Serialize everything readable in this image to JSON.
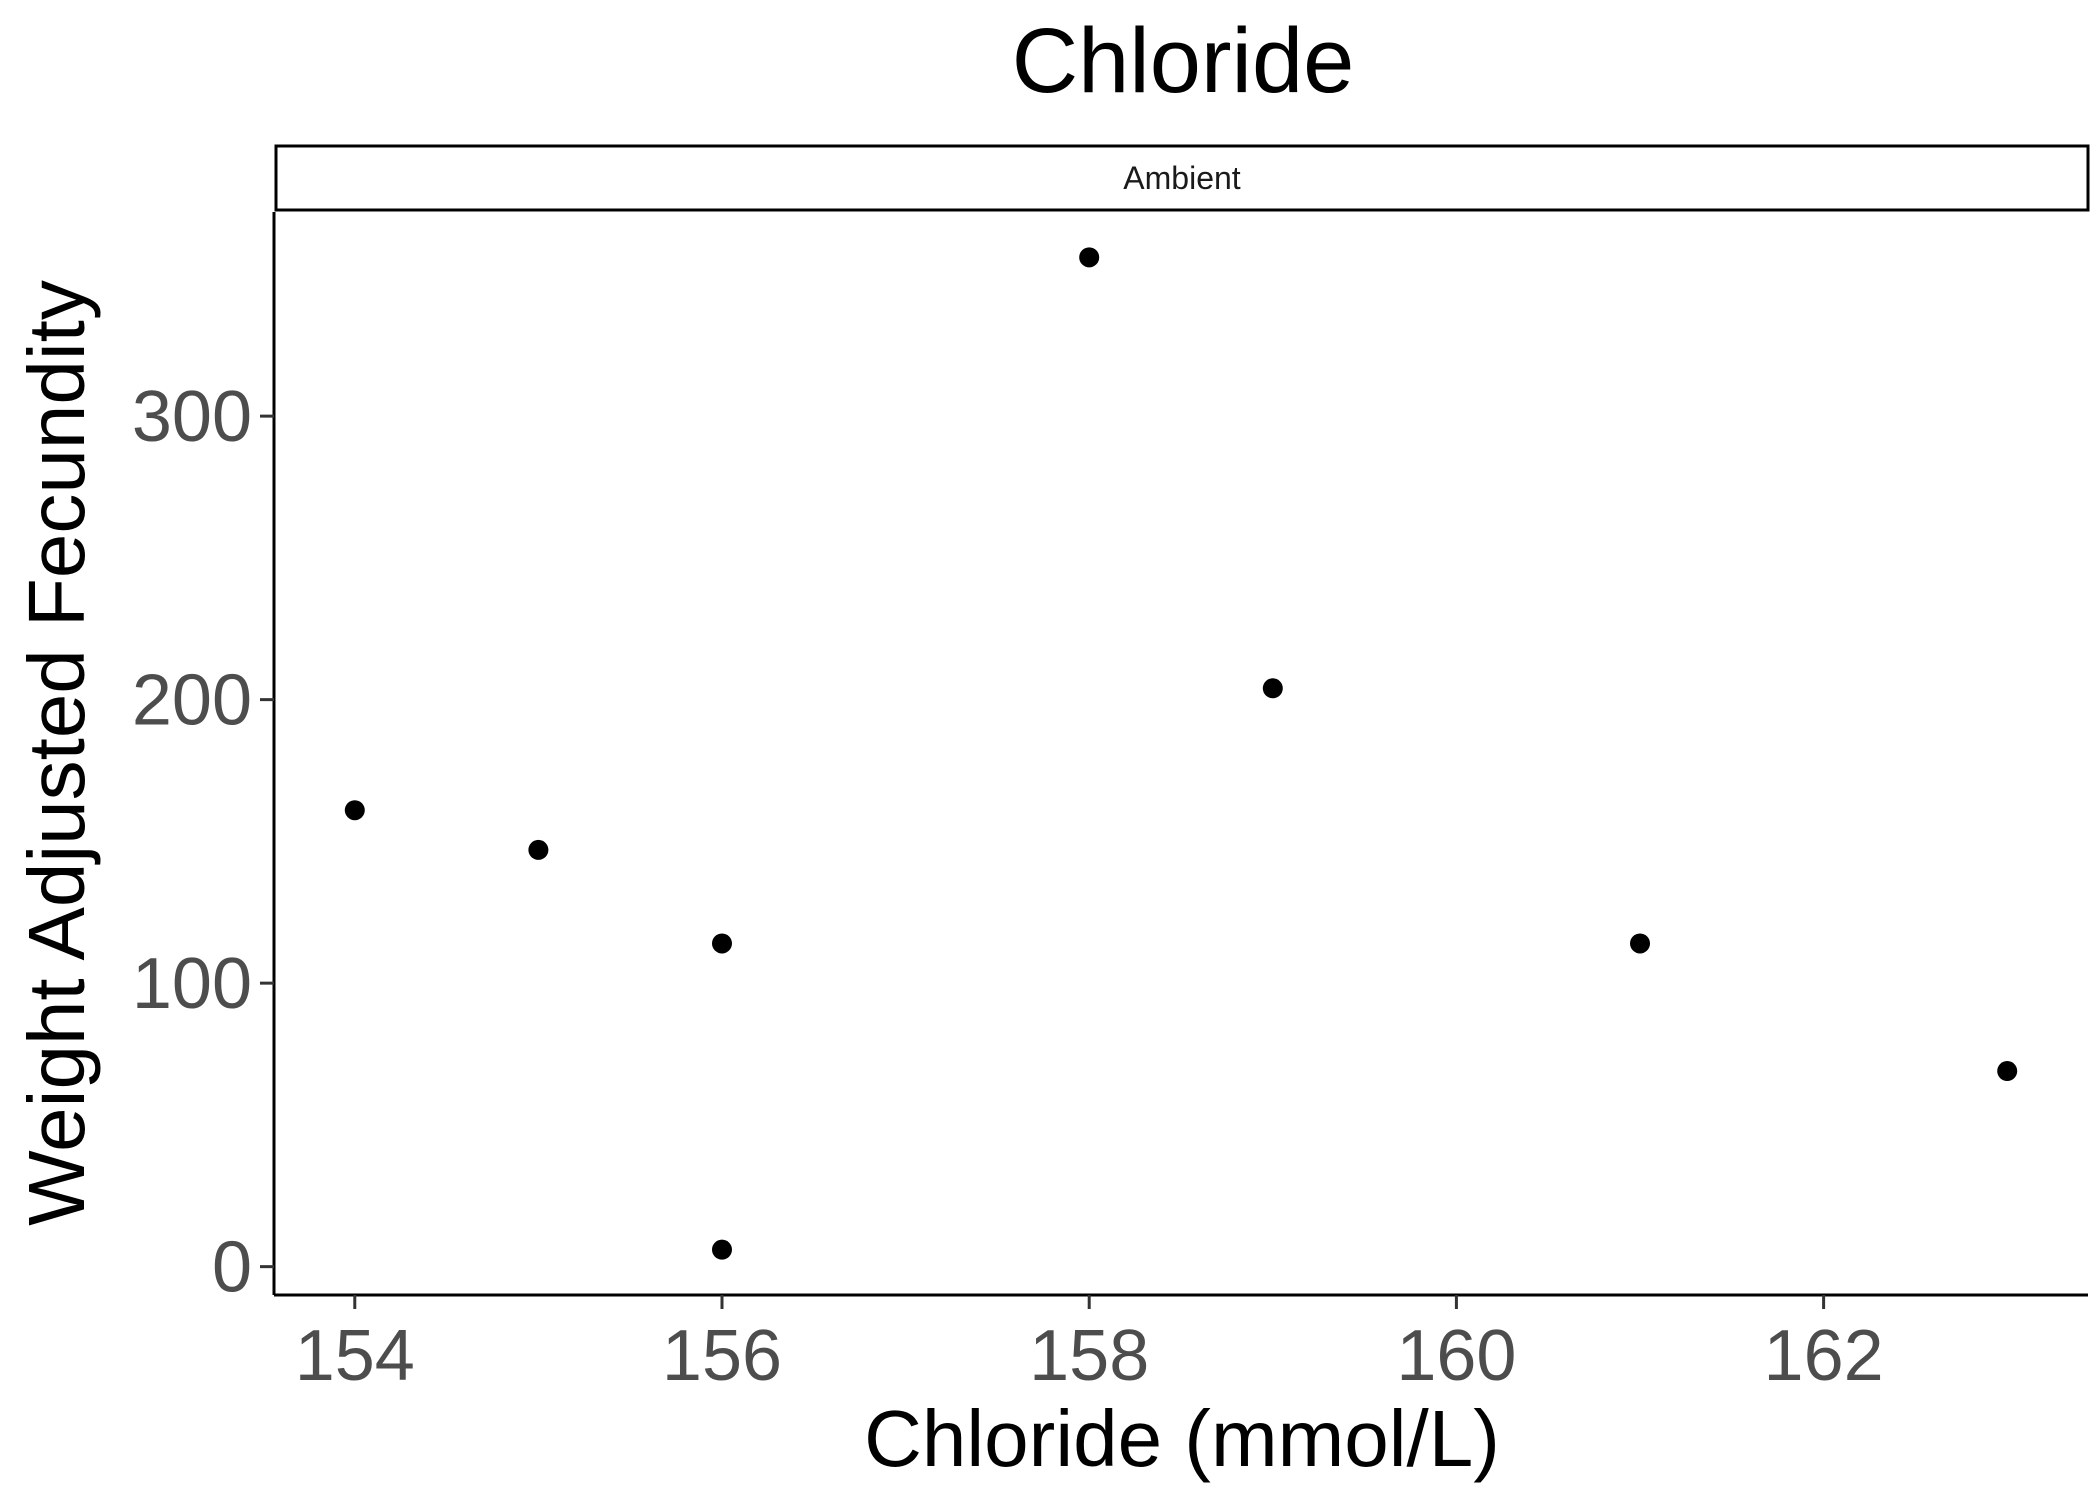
{
  "chart_data": {
    "type": "scatter",
    "title": "Chloride",
    "facet_label": "Ambient",
    "xlabel": "Chloride (mmol/L)",
    "ylabel": "Weight Adjusted Fecundity",
    "xlim": [
      153.56,
      163.44
    ],
    "ylim": [
      -10,
      372
    ],
    "x_ticks": [
      154,
      156,
      158,
      160,
      162
    ],
    "y_ticks": [
      0,
      100,
      200,
      300
    ],
    "grid": false,
    "legend": "none",
    "point_color": "#000000",
    "points": [
      {
        "x": 154,
        "y": 161
      },
      {
        "x": 155,
        "y": 147
      },
      {
        "x": 156,
        "y": 114
      },
      {
        "x": 156,
        "y": 6
      },
      {
        "x": 158,
        "y": 356
      },
      {
        "x": 159,
        "y": 204
      },
      {
        "x": 161,
        "y": 114
      },
      {
        "x": 163,
        "y": 69
      }
    ]
  }
}
